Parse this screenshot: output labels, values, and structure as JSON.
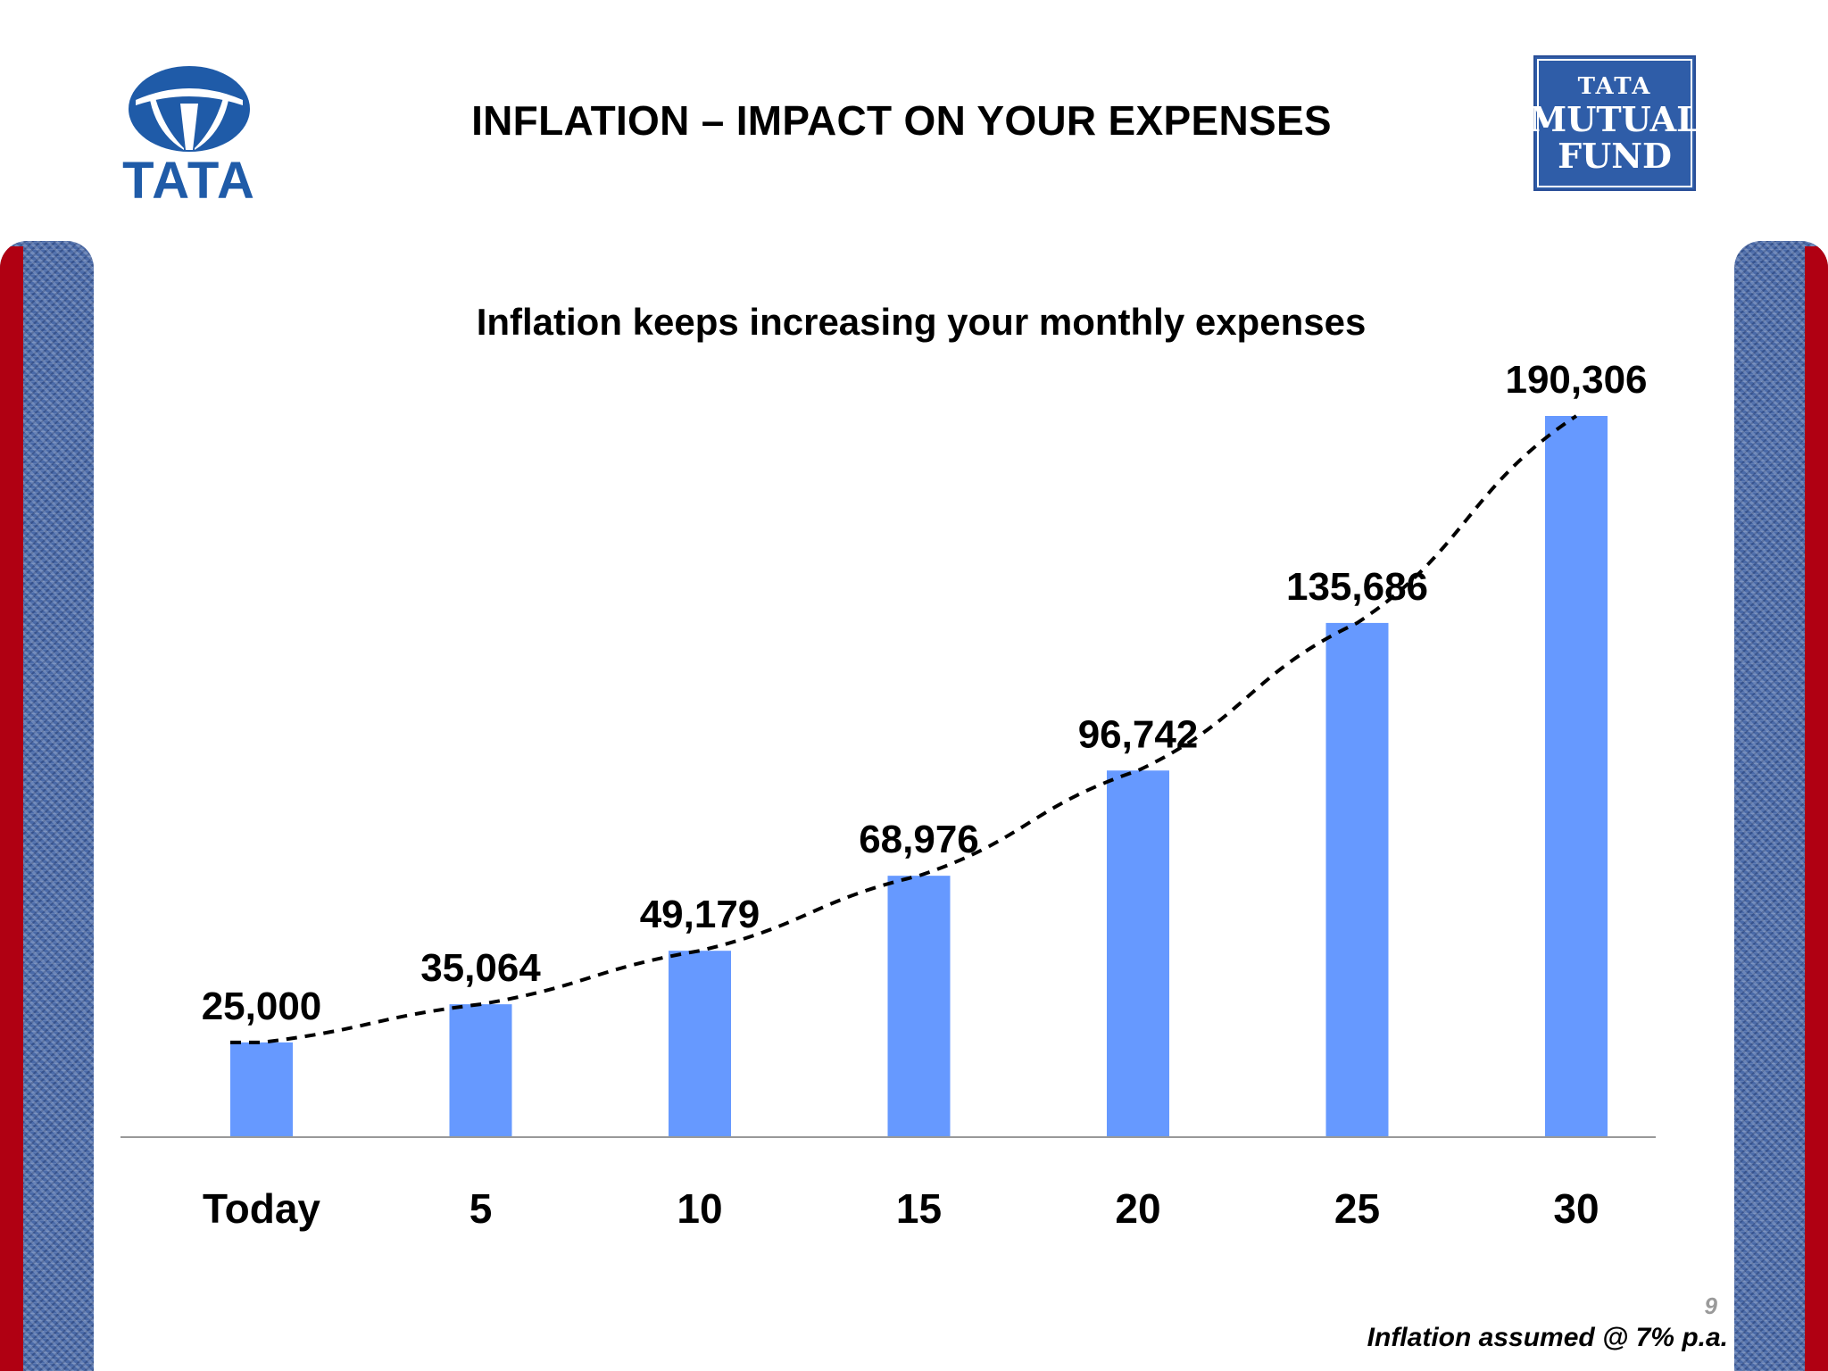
{
  "header": {
    "title": "INFLATION – IMPACT ON YOUR EXPENSES",
    "left_logo": {
      "text": "TATA",
      "icon": "tata-emblem-icon",
      "color": "#1f5ba8"
    },
    "right_logo": {
      "line1": "TATA",
      "line2": "MUTUAL",
      "line3": "FUND",
      "color": "#2f5da8"
    }
  },
  "chart_data": {
    "type": "bar",
    "title": "Inflation keeps increasing your monthly expenses",
    "categories": [
      "Today",
      "5",
      "10",
      "15",
      "20",
      "25",
      "30"
    ],
    "values": [
      25000,
      35064,
      49179,
      68976,
      96742,
      135686,
      190306
    ],
    "value_labels": [
      "25,000",
      "35,064",
      "49,179",
      "68,976",
      "96,742",
      "135,686",
      "190,306"
    ],
    "ylim": [
      0,
      190306
    ],
    "xlabel": "",
    "ylabel": "",
    "grid": false,
    "trendline": "dashed exponential",
    "colors": {
      "bar": "#6699ff",
      "trend": "#000000",
      "axis": "#999999"
    }
  },
  "footer": {
    "note": "Inflation assumed @ 7% p.a.",
    "page": "9"
  },
  "decor": {
    "side_panel_color": "#4a6aa8",
    "side_stripe_color": "#b00012"
  }
}
